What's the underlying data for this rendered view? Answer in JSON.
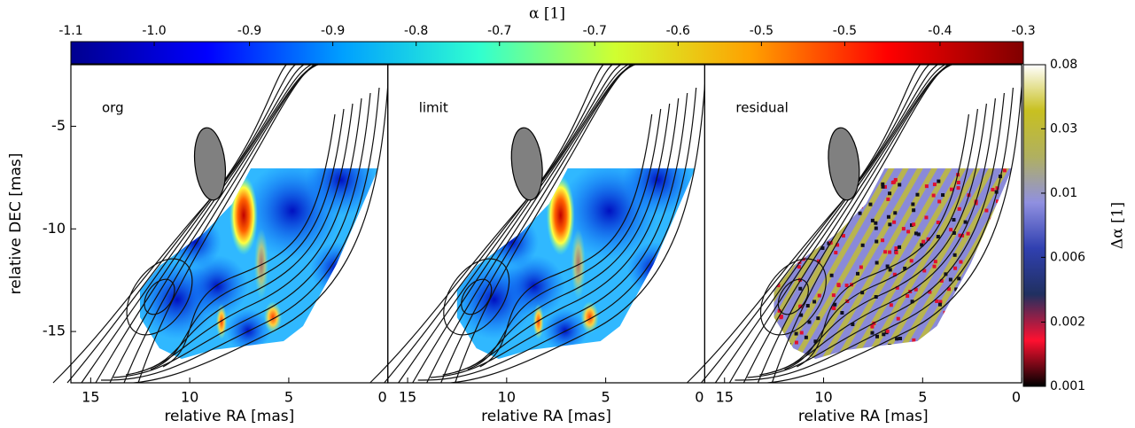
{
  "chart_data": [
    {
      "type": "heatmap",
      "label": "org",
      "xlabel": "relative RA [mas]",
      "ylabel": "relative DEC [mas]",
      "xlim": [
        16,
        0
      ],
      "ylim": [
        -17.5,
        -2
      ],
      "xticks": [
        15,
        10,
        5,
        0
      ],
      "yticks": [
        -5,
        -10,
        -15
      ]
    },
    {
      "type": "heatmap",
      "label": "limit",
      "xlabel": "relative RA [mas]",
      "xlim": [
        16,
        0
      ],
      "ylim": [
        -17.5,
        -2
      ],
      "xticks": [
        15,
        10,
        5,
        0
      ]
    },
    {
      "type": "residual",
      "label": "residual",
      "xlabel": "relative RA [mas]",
      "xlim": [
        16,
        0
      ],
      "ylim": [
        -17.5,
        -2
      ],
      "xticks": [
        15,
        10,
        5,
        0
      ]
    },
    {
      "type": "colorbar",
      "orientation": "horizontal",
      "label": "α [1]",
      "colors": [
        "#00008f",
        "#0000ff",
        "#00a0ff",
        "#30ffd0",
        "#d0ff30",
        "#ffa000",
        "#ff0000",
        "#800000"
      ],
      "xlim": [
        -1.1,
        -0.3
      ],
      "xticks": [
        {
          "value": -1.1,
          "label": "-1.1"
        },
        {
          "value": -1.03,
          "label": "-1.0"
        },
        {
          "value": -0.95,
          "label": "-0.9"
        },
        {
          "value": -0.88,
          "label": "-0.9"
        },
        {
          "value": -0.81,
          "label": "-0.8"
        },
        {
          "value": -0.74,
          "label": "-0.7"
        },
        {
          "value": -0.66,
          "label": "-0.7"
        },
        {
          "value": -0.59,
          "label": "-0.6"
        },
        {
          "value": -0.52,
          "label": "-0.5"
        },
        {
          "value": -0.45,
          "label": "-0.5"
        },
        {
          "value": -0.37,
          "label": "-0.4"
        },
        {
          "value": -0.3,
          "label": "-0.3"
        }
      ]
    },
    {
      "type": "colorbar",
      "orientation": "vertical",
      "label": "Δα [1]",
      "log": true,
      "colors": [
        "#000000",
        "#ff1030",
        "#203060",
        "#3040b0",
        "#9090e0",
        "#b0b060",
        "#c8c020",
        "#ffffff"
      ],
      "ylim": [
        0.001,
        0.08
      ],
      "yticks": [
        {
          "value": 0.001,
          "label": "0.001"
        },
        {
          "value": 0.0024,
          "label": "0.002"
        },
        {
          "value": 0.0058,
          "label": "0.006"
        },
        {
          "value": 0.0139,
          "label": "0.01"
        },
        {
          "value": 0.0334,
          "label": "0.03"
        },
        {
          "value": 0.08,
          "label": "0.08"
        }
      ]
    }
  ]
}
